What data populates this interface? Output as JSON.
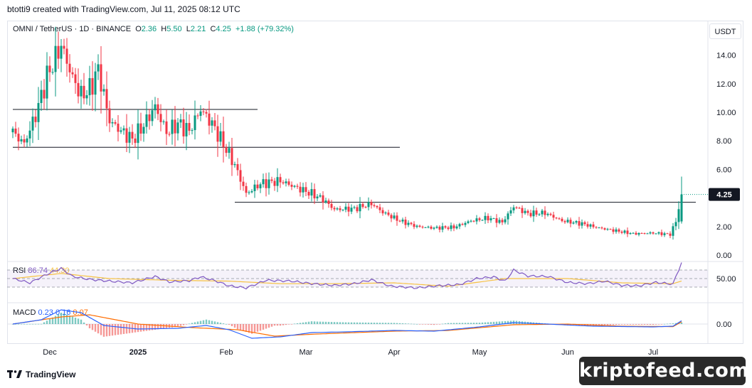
{
  "header": {
    "attribution": "btotti9 created with TradingView.com, Jul 11, 2025 08:12 UTC"
  },
  "legend": {
    "symbol": "OMNI / TetherUS · 1D · BINANCE",
    "open_label": "O",
    "open": "2.36",
    "high_label": "H",
    "high": "5.50",
    "low_label": "L",
    "low": "2.21",
    "close_label": "C",
    "close": "4.25",
    "change": "+1.88 (+79.32%)"
  },
  "unit_button": "USDT",
  "last_price_label": "4.25",
  "rsi": {
    "label": "RSI",
    "value": "86.74",
    "ma_value": "44.30",
    "axis_label": "50.00"
  },
  "macd": {
    "label": "MACD",
    "macd_value": "0.23",
    "signal_value": "0.16",
    "hist_value": "0.07",
    "axis_label": "0.00"
  },
  "footer": {
    "brand": "TradingView"
  },
  "watermark": "kriptofeed.com",
  "colors": {
    "up": "#089981",
    "down": "#f23645",
    "rsi_line": "#7e57c2",
    "rsi_ma": "#f7c243",
    "macd_line": "#2962ff",
    "signal_line": "#ff6d00",
    "last_price_bg": "#131722"
  },
  "chart_data": {
    "type": "candlestick",
    "y_axis_ticks": [
      "14.00",
      "12.00",
      "10.00",
      "8.00",
      "6.00",
      "4.00",
      "2.00",
      "0.00"
    ],
    "x_axis_ticks": [
      "Dec",
      "2025",
      "Feb",
      "Mar",
      "Apr",
      "May",
      "Jun",
      "Jul"
    ],
    "ylim": [
      0,
      15
    ],
    "horizontal_levels": [
      {
        "price": 10.2,
        "from": "Nov 18",
        "to": "Feb 12"
      },
      {
        "price": 7.55,
        "from": "Nov 18",
        "to": "Apr 3"
      },
      {
        "price": 3.7,
        "from": "Feb 4",
        "to": "Jul 16"
      }
    ],
    "close_path": [
      [
        "Nov 18",
        8.6
      ],
      [
        "Nov 22",
        7.8
      ],
      [
        "Nov 26",
        9.8
      ],
      [
        "Nov 30",
        12.5
      ],
      [
        "Dec 5",
        14.7
      ],
      [
        "Dec 9",
        12.4
      ],
      [
        "Dec 12",
        11.2
      ],
      [
        "Dec 15",
        11.6
      ],
      [
        "Dec 18",
        13.0
      ],
      [
        "Dec 22",
        9.4
      ],
      [
        "Dec 26",
        8.7
      ],
      [
        "Dec 30",
        8.1
      ],
      [
        "Jan 3",
        9.1
      ],
      [
        "Jan 7",
        10.4
      ],
      [
        "Jan 11",
        8.6
      ],
      [
        "Jan 15",
        9.2
      ],
      [
        "Jan 19",
        8.7
      ],
      [
        "Jan 23",
        10.2
      ],
      [
        "Jan 27",
        9.2
      ],
      [
        "Feb 1",
        7.4
      ],
      [
        "Feb 4",
        6.3
      ],
      [
        "Feb 8",
        4.3
      ],
      [
        "Feb 13",
        5.0
      ],
      [
        "Feb 20",
        5.2
      ],
      [
        "Feb 26",
        4.7
      ],
      [
        "Mar 3",
        4.3
      ],
      [
        "Mar 7",
        3.9
      ],
      [
        "Mar 11",
        3.2
      ],
      [
        "Mar 18",
        3.25
      ],
      [
        "Mar 24",
        3.6
      ],
      [
        "Mar 28",
        3.0
      ],
      [
        "Apr 3",
        2.4
      ],
      [
        "Apr 9",
        2.0
      ],
      [
        "Apr 15",
        1.9
      ],
      [
        "Apr 22",
        1.95
      ],
      [
        "Apr 28",
        2.4
      ],
      [
        "May 4",
        2.6
      ],
      [
        "May 9",
        2.3
      ],
      [
        "May 13",
        3.4
      ],
      [
        "May 18",
        2.9
      ],
      [
        "May 24",
        2.95
      ],
      [
        "May 30",
        2.4
      ],
      [
        "Jun 6",
        2.2
      ],
      [
        "Jun 12",
        1.9
      ],
      [
        "Jun 18",
        1.7
      ],
      [
        "Jun 24",
        1.5
      ],
      [
        "Jul 1",
        1.55
      ],
      [
        "Jul 7",
        1.45
      ],
      [
        "Jul 9",
        2.36
      ],
      [
        "Jul 11",
        4.25
      ]
    ],
    "last_candle": {
      "date": "Jul 11",
      "open": 2.36,
      "high": 5.5,
      "low": 2.21,
      "close": 4.25
    },
    "rsi_ylim": [
      0,
      100
    ],
    "rsi_band": [
      30,
      70
    ],
    "rsi_path": [
      [
        "Nov 18",
        50
      ],
      [
        "Nov 24",
        40
      ],
      [
        "Nov 30",
        60
      ],
      [
        "Dec 5",
        74
      ],
      [
        "Dec 9",
        55
      ],
      [
        "Dec 15",
        48
      ],
      [
        "Dec 22",
        44
      ],
      [
        "Dec 30",
        40
      ],
      [
        "Jan 7",
        55
      ],
      [
        "Jan 12",
        42
      ],
      [
        "Jan 19",
        45
      ],
      [
        "Jan 23",
        54
      ],
      [
        "Jan 28",
        45
      ],
      [
        "Feb 2",
        33
      ],
      [
        "Feb 8",
        28
      ],
      [
        "Feb 15",
        46
      ],
      [
        "Feb 24",
        44
      ],
      [
        "Mar 3",
        38
      ],
      [
        "Mar 11",
        34
      ],
      [
        "Mar 18",
        38
      ],
      [
        "Mar 24",
        47
      ],
      [
        "Mar 31",
        32
      ],
      [
        "Apr 9",
        28
      ],
      [
        "Apr 16",
        33
      ],
      [
        "Apr 24",
        36
      ],
      [
        "Apr 30",
        50
      ],
      [
        "May 6",
        54
      ],
      [
        "May 10",
        44
      ],
      [
        "May 13",
        70
      ],
      [
        "May 18",
        56
      ],
      [
        "May 25",
        55
      ],
      [
        "Jun 1",
        41
      ],
      [
        "Jun 8",
        38
      ],
      [
        "Jun 14",
        44
      ],
      [
        "Jun 20",
        34
      ],
      [
        "Jun 26",
        33
      ],
      [
        "Jul 2",
        41
      ],
      [
        "Jul 8",
        37
      ],
      [
        "Jul 9",
        55
      ],
      [
        "Jul 11",
        86.74
      ]
    ],
    "rsi_ma_path": [
      [
        "Nov 18",
        50
      ],
      [
        "Dec 5",
        62
      ],
      [
        "Dec 22",
        50
      ],
      [
        "Jan 12",
        46
      ],
      [
        "Feb 2",
        44
      ],
      [
        "Feb 20",
        38
      ],
      [
        "Mar 11",
        38
      ],
      [
        "Apr 1",
        40
      ],
      [
        "Apr 20",
        32
      ],
      [
        "May 10",
        50
      ],
      [
        "Jun 1",
        50
      ],
      [
        "Jun 20",
        40
      ],
      [
        "Jul 8",
        38
      ],
      [
        "Jul 11",
        44.3
      ]
    ],
    "macd_ylim": [
      -1.5,
      1.2
    ],
    "macd_path": [
      [
        "Nov 18",
        0.0
      ],
      [
        "Nov 28",
        0.3
      ],
      [
        "Dec 5",
        1.0
      ],
      [
        "Dec 12",
        0.8
      ],
      [
        "Dec 20",
        -0.1
      ],
      [
        "Jan 1",
        -0.35
      ],
      [
        "Jan 15",
        -0.3
      ],
      [
        "Jan 25",
        -0.1
      ],
      [
        "Feb 2",
        -0.4
      ],
      [
        "Feb 10",
        -1.0
      ],
      [
        "Feb 20",
        -0.9
      ],
      [
        "Mar 3",
        -0.6
      ],
      [
        "Mar 15",
        -0.55
      ],
      [
        "Apr 1",
        -0.45
      ],
      [
        "Apr 15",
        -0.5
      ],
      [
        "May 1",
        -0.2
      ],
      [
        "May 13",
        0.1
      ],
      [
        "May 25",
        0.0
      ],
      [
        "Jun 10",
        -0.15
      ],
      [
        "Jul 1",
        -0.2
      ],
      [
        "Jul 8",
        -0.15
      ],
      [
        "Jul 11",
        0.23
      ]
    ],
    "signal_path": [
      [
        "Nov 18",
        0.0
      ],
      [
        "Dec 5",
        0.5
      ],
      [
        "Dec 15",
        0.65
      ],
      [
        "Jan 1",
        0.0
      ],
      [
        "Jan 20",
        -0.25
      ],
      [
        "Feb 5",
        -0.4
      ],
      [
        "Feb 18",
        -0.85
      ],
      [
        "Mar 5",
        -0.7
      ],
      [
        "Apr 1",
        -0.5
      ],
      [
        "Apr 20",
        -0.45
      ],
      [
        "May 13",
        -0.05
      ],
      [
        "Jun 1",
        0.0
      ],
      [
        "Jun 20",
        -0.15
      ],
      [
        "Jul 8",
        -0.18
      ],
      [
        "Jul 11",
        0.16
      ]
    ],
    "histogram_last": 0.07
  }
}
